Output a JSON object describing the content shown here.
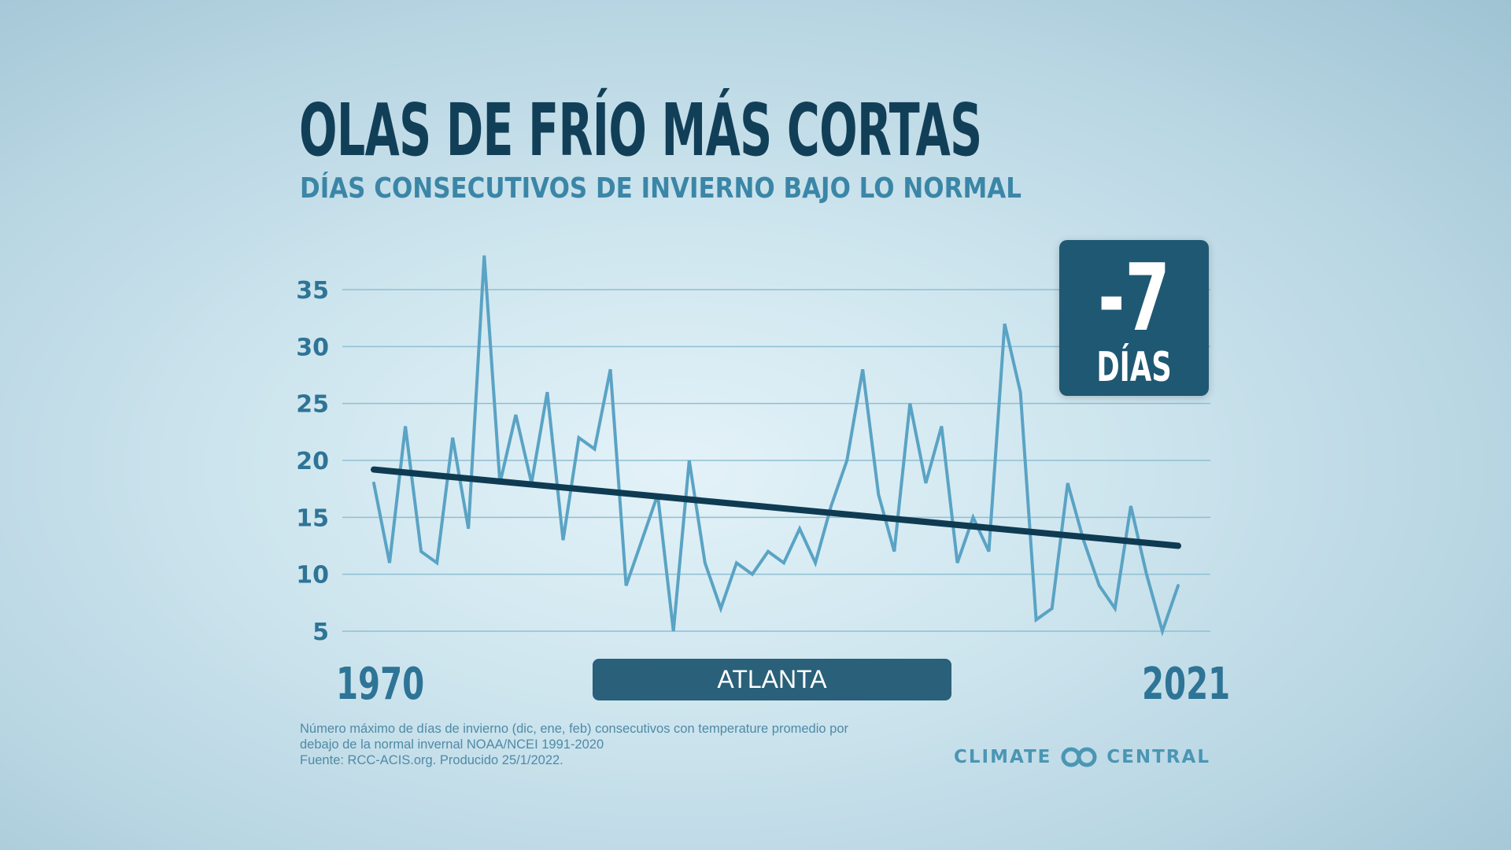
{
  "header": {
    "title": "OLAS DE FRÍO MÁS CORTAS",
    "subtitle": "DÍAS CONSECUTIVOS DE INVIERNO BAJO LO NORMAL"
  },
  "badge": {
    "value": "-7",
    "unit": "DÍAS"
  },
  "x_axis": {
    "start_label": "1970",
    "end_label": "2021"
  },
  "location_label": "ATLANTA",
  "footnote": {
    "line1": "Número máximo de días de invierno (dic, ene, feb) consecutivos con temperature promedio por",
    "line2": "debajo de la normal invernal NOAA/NCEI 1991-2020",
    "line3": "Fuente: RCC-ACIS.org. Producido 25/1/2022."
  },
  "brand": {
    "left": "CLIMATE",
    "right": "CENTRAL",
    "logo_icon": "climate-central-logo-icon"
  },
  "colors": {
    "series": "#5aa3c4",
    "trend": "#0f3b52",
    "title": "#123f58",
    "accent": "#3b86a7"
  },
  "chart_data": {
    "type": "line",
    "title": "OLAS DE FRÍO MÁS CORTAS",
    "subtitle": "DÍAS CONSECUTIVOS DE INVIERNO BAJO LO NORMAL",
    "xlim": [
      1970,
      2021
    ],
    "ylim": [
      5,
      35
    ],
    "yticks": [
      5,
      10,
      15,
      20,
      25,
      30,
      35
    ],
    "grid": true,
    "series": [
      {
        "x": [
          1970,
          1971,
          1972,
          1973,
          1974,
          1975,
          1976,
          1977,
          1978,
          1979,
          1980,
          1981,
          1982,
          1983,
          1984,
          1985,
          1986,
          1987,
          1988,
          1989,
          1990,
          1991,
          1992,
          1993,
          1994,
          1995,
          1996,
          1997,
          1998,
          1999,
          2000,
          2001,
          2002,
          2003,
          2004,
          2005,
          2006,
          2007,
          2008,
          2009,
          2010,
          2011,
          2012,
          2013,
          2014,
          2015,
          2016,
          2017,
          2018,
          2019,
          2020,
          2021
        ],
        "values": [
          18,
          11,
          23,
          12,
          11,
          22,
          14,
          38,
          18,
          24,
          18,
          26,
          13,
          22,
          21,
          28,
          9,
          13,
          17,
          5,
          20,
          11,
          7,
          11,
          10,
          12,
          11,
          14,
          11,
          16,
          20,
          28,
          17,
          12,
          25,
          18,
          23,
          11,
          15,
          12,
          32,
          26,
          6,
          7,
          18,
          13,
          9,
          7,
          16,
          10,
          5,
          9
        ]
      }
    ],
    "trend": {
      "x": [
        1970,
        2021
      ],
      "values": [
        19.2,
        12.5
      ]
    }
  }
}
